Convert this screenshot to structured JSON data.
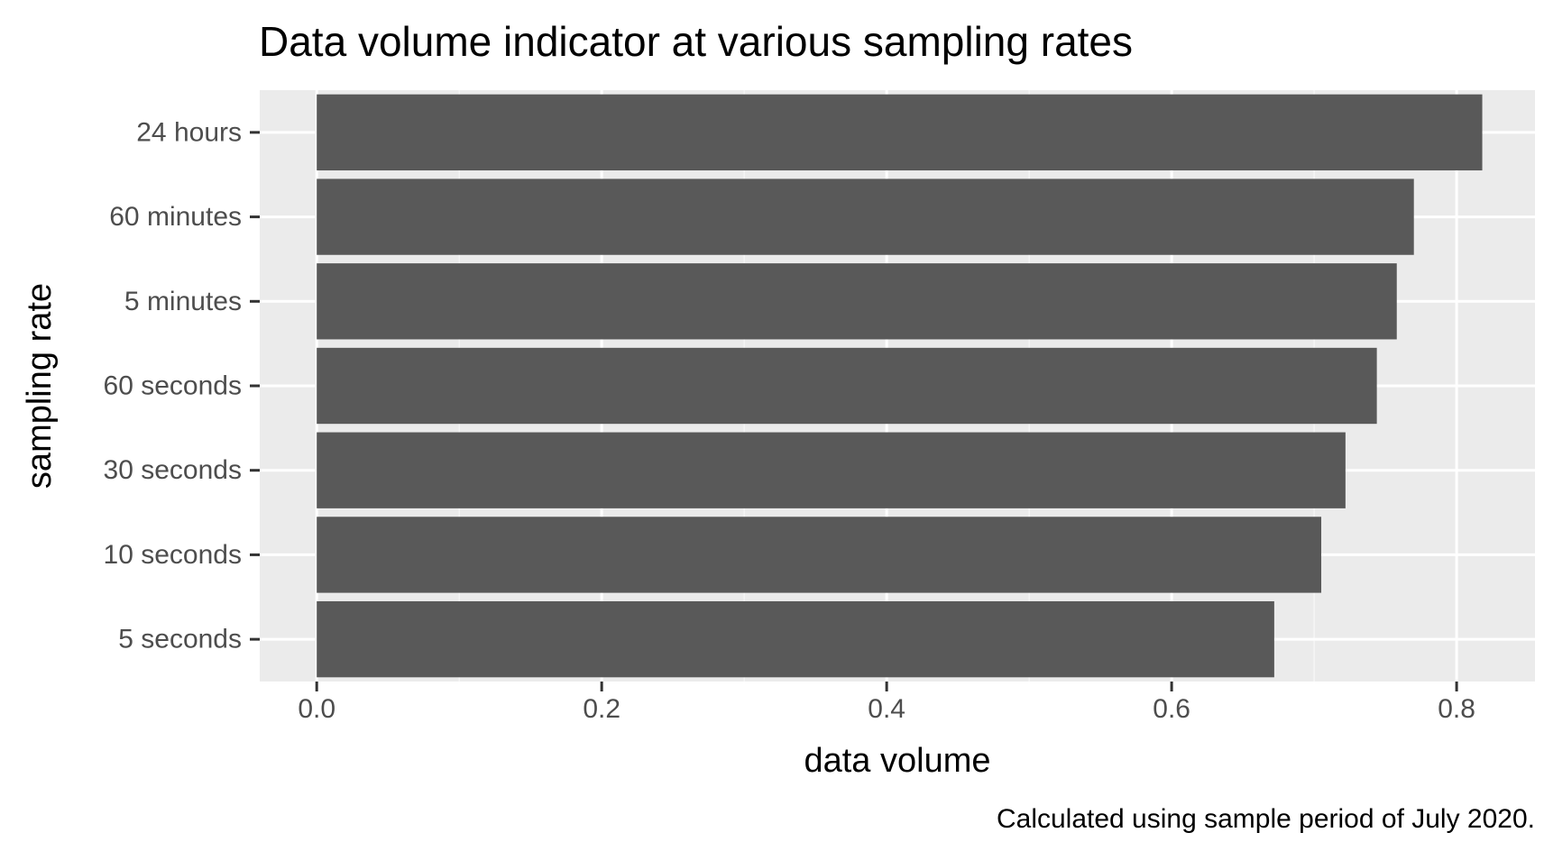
{
  "chart_data": {
    "type": "bar",
    "orientation": "horizontal",
    "title": "Data volume indicator at various sampling rates",
    "xlabel": "data volume",
    "ylabel": "sampling rate",
    "caption": "Calculated using sample period of July 2020.",
    "categories": [
      "24 hours",
      "60 minutes",
      "5 minutes",
      "60 seconds",
      "30 seconds",
      "10 seconds",
      "5 seconds"
    ],
    "values": [
      0.818,
      0.77,
      0.758,
      0.744,
      0.722,
      0.705,
      0.672
    ],
    "xlim": [
      -0.04,
      0.855
    ],
    "xticks": [
      0.0,
      0.2,
      0.4,
      0.6,
      0.8
    ],
    "xtick_labels": [
      "0.0",
      "0.2",
      "0.4",
      "0.6",
      "0.8"
    ],
    "grid": true,
    "colors": {
      "bar": "#595959",
      "panel_background": "#ebebeb",
      "grid_major": "#ffffff",
      "grid_minor": "#f5f5f5",
      "tick_label": "#4d4d4d",
      "tick_mark": "#333333"
    }
  }
}
